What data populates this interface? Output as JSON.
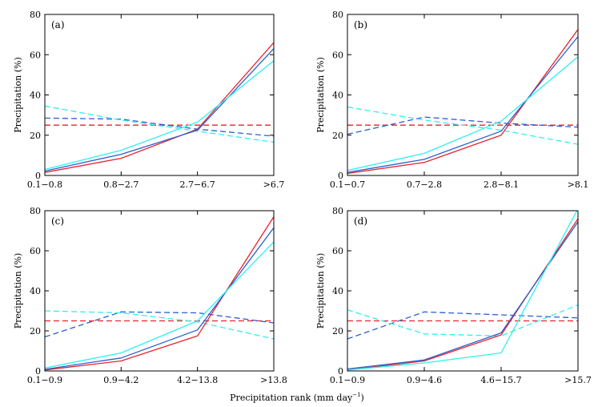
{
  "figure": {
    "xlabel_main": "Precipitation rank (mm day",
    "xlabel_sup": "−1",
    "xlabel_close": ")"
  },
  "chart_data": [
    {
      "type": "line",
      "panel_label": "(a)",
      "ylabel": "Precipitation (%)",
      "ylim": [
        0,
        80
      ],
      "yticks": [
        "0",
        "20",
        "40",
        "60",
        "80"
      ],
      "categories": [
        "0.1−0.8",
        "0.8−2.7",
        "2.7−6.7",
        ">6.7"
      ],
      "series": [
        {
          "name": "solid-red",
          "color": "#e8232e",
          "dashed": false,
          "values": [
            1.5,
            8.5,
            23,
            66
          ]
        },
        {
          "name": "solid-blue",
          "color": "#2b5fce",
          "dashed": false,
          "values": [
            2.2,
            10.5,
            22.5,
            63
          ]
        },
        {
          "name": "solid-cyan",
          "color": "#2ff0ef",
          "dashed": false,
          "values": [
            3,
            12.5,
            26.5,
            57
          ]
        },
        {
          "name": "dashed-red",
          "color": "#e8232e",
          "dashed": true,
          "values": [
            25,
            25,
            25,
            25
          ]
        },
        {
          "name": "dashed-blue",
          "color": "#2b5fce",
          "dashed": true,
          "values": [
            28.5,
            28,
            23,
            19.5
          ]
        },
        {
          "name": "dashed-cyan",
          "color": "#2ff0ef",
          "dashed": true,
          "values": [
            34.5,
            27.5,
            22,
            16.5
          ]
        }
      ]
    },
    {
      "type": "line",
      "panel_label": "(b)",
      "ylabel": "Precipitation (%)",
      "ylim": [
        0,
        80
      ],
      "yticks": [
        "0",
        "20",
        "40",
        "60",
        "80"
      ],
      "categories": [
        "0.1−0.7",
        "0.7−2.8",
        "2.8−8.1",
        ">8.1"
      ],
      "series": [
        {
          "name": "solid-red",
          "color": "#e8232e",
          "dashed": false,
          "values": [
            1,
            6.5,
            20,
            72.5
          ]
        },
        {
          "name": "solid-blue",
          "color": "#2b5fce",
          "dashed": false,
          "values": [
            1.5,
            8,
            22,
            69
          ]
        },
        {
          "name": "solid-cyan",
          "color": "#2ff0ef",
          "dashed": false,
          "values": [
            2.5,
            11,
            27,
            59
          ]
        },
        {
          "name": "dashed-red",
          "color": "#e8232e",
          "dashed": true,
          "values": [
            25,
            25,
            25,
            25
          ]
        },
        {
          "name": "dashed-blue",
          "color": "#2b5fce",
          "dashed": true,
          "values": [
            20.5,
            29,
            26,
            24
          ]
        },
        {
          "name": "dashed-cyan",
          "color": "#2ff0ef",
          "dashed": true,
          "values": [
            34,
            27.5,
            22.5,
            15.5
          ]
        }
      ]
    },
    {
      "type": "line",
      "panel_label": "(c)",
      "ylabel": "Precipitation (%)",
      "ylim": [
        0,
        80
      ],
      "yticks": [
        "0",
        "20",
        "40",
        "60",
        "80"
      ],
      "categories": [
        "0.1−0.9",
        "0.9−4.2",
        "4.2−13.8",
        ">13.8"
      ],
      "series": [
        {
          "name": "solid-red",
          "color": "#e8232e",
          "dashed": false,
          "values": [
            0.5,
            5,
            17.5,
            77
          ]
        },
        {
          "name": "solid-blue",
          "color": "#2b5fce",
          "dashed": false,
          "values": [
            0.8,
            6.5,
            20.5,
            71.5
          ]
        },
        {
          "name": "solid-cyan",
          "color": "#2ff0ef",
          "dashed": false,
          "values": [
            1.5,
            9,
            25,
            64.5
          ]
        },
        {
          "name": "dashed-red",
          "color": "#e8232e",
          "dashed": true,
          "values": [
            25,
            25,
            25,
            25
          ]
        },
        {
          "name": "dashed-blue",
          "color": "#2b5fce",
          "dashed": true,
          "values": [
            17,
            29.5,
            29,
            24
          ]
        },
        {
          "name": "dashed-cyan",
          "color": "#2ff0ef",
          "dashed": true,
          "values": [
            30,
            29,
            24.5,
            16
          ]
        }
      ]
    },
    {
      "type": "line",
      "panel_label": "(d)",
      "ylabel": "Precipitation (%)",
      "ylim": [
        0,
        80
      ],
      "yticks": [
        "0",
        "20",
        "40",
        "60",
        "80"
      ],
      "categories": [
        "0.1−0.9",
        "0.9−4.6",
        "4.6−15.7",
        ">15.7"
      ],
      "series": [
        {
          "name": "solid-red",
          "color": "#e8232e",
          "dashed": false,
          "values": [
            0.5,
            5,
            18,
            76
          ]
        },
        {
          "name": "solid-blue",
          "color": "#2b5fce",
          "dashed": false,
          "values": [
            1,
            5.5,
            19,
            74.5
          ]
        },
        {
          "name": "solid-cyan",
          "color": "#2ff0ef",
          "dashed": false,
          "values": [
            0.5,
            4,
            9,
            81
          ]
        },
        {
          "name": "dashed-red",
          "color": "#e8232e",
          "dashed": true,
          "values": [
            25,
            25,
            25,
            25
          ]
        },
        {
          "name": "dashed-blue",
          "color": "#2b5fce",
          "dashed": true,
          "values": [
            16,
            29.5,
            28,
            26.5
          ]
        },
        {
          "name": "dashed-cyan",
          "color": "#2ff0ef",
          "dashed": true,
          "values": [
            30.5,
            18.5,
            17.5,
            33
          ]
        }
      ]
    }
  ]
}
